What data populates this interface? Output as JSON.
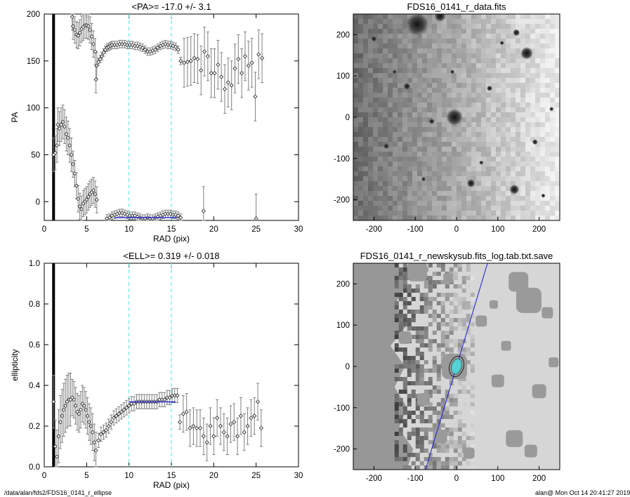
{
  "footer": {
    "path": "/data/alan/fds2/FDS16_0141_r_ellipse",
    "stamp": "alan@  Mon Oct 14 20:41:27 2019"
  },
  "colors": {
    "guide": "#4fe0e0",
    "fit": "#2b2bd0",
    "errbar": "#808080"
  },
  "chart_data": [
    {
      "type": "scatter",
      "title": "<PA>= -17.0 +/-   3.1",
      "xlabel": "RAD (pix)",
      "ylabel": "PA",
      "xlim": [
        0,
        30
      ],
      "ylim": [
        -20,
        200
      ],
      "xticks": [
        "0",
        "5",
        "10",
        "15",
        "20",
        "25",
        "30"
      ],
      "yticks": [
        "0",
        "50",
        "100",
        "150",
        "200"
      ],
      "guide_lines_x": [
        10,
        15
      ],
      "fit_segment": {
        "x": [
          8.3,
          15.7
        ],
        "y": -17
      },
      "series": [
        {
          "points": [
            [
              3.3,
              197
            ],
            [
              3.4,
              187
            ],
            [
              3.6,
              183
            ],
            [
              3.8,
              178
            ],
            [
              4.0,
              177
            ],
            [
              4.2,
              180
            ],
            [
              4.4,
              184
            ],
            [
              4.6,
              186
            ],
            [
              4.8,
              188
            ],
            [
              5.0,
              188
            ],
            [
              5.2,
              187
            ],
            [
              5.4,
              183
            ],
            [
              5.6,
              176
            ],
            [
              5.8,
              168
            ],
            [
              6.0,
              160
            ],
            [
              6.1,
              130
            ],
            [
              6.2,
              145
            ],
            [
              6.4,
              149
            ],
            [
              6.6,
              152
            ],
            [
              6.8,
              155
            ],
            [
              7.0,
              159
            ],
            [
              7.2,
              162
            ],
            [
              7.4,
              164
            ],
            [
              7.6,
              165
            ],
            [
              7.8,
              166
            ],
            [
              8.0,
              167
            ],
            [
              8.3,
              167
            ],
            [
              8.6,
              167
            ],
            [
              8.9,
              168
            ],
            [
              9.2,
              168
            ],
            [
              9.5,
              168
            ],
            [
              9.8,
              167
            ],
            [
              10.1,
              167
            ],
            [
              10.4,
              167
            ],
            [
              10.7,
              166
            ],
            [
              11.0,
              166
            ],
            [
              11.3,
              165
            ],
            [
              11.6,
              164
            ],
            [
              11.9,
              162
            ],
            [
              12.2,
              160
            ],
            [
              12.5,
              160
            ],
            [
              12.8,
              161
            ],
            [
              13.1,
              162
            ],
            [
              13.4,
              164
            ],
            [
              13.7,
              166
            ],
            [
              14.0,
              167
            ],
            [
              14.3,
              168
            ],
            [
              14.6,
              167
            ],
            [
              14.9,
              167
            ],
            [
              15.2,
              166
            ],
            [
              15.5,
              165
            ],
            [
              15.8,
              162
            ],
            [
              16.1,
              150
            ],
            [
              16.5,
              148
            ],
            [
              16.9,
              149
            ],
            [
              17.3,
              150
            ],
            [
              17.7,
              153
            ],
            [
              18.1,
              152
            ],
            [
              18.5,
              140
            ],
            [
              18.9,
              160
            ],
            [
              19.3,
              155
            ],
            [
              19.7,
              137
            ],
            [
              20.1,
              137
            ],
            [
              20.5,
              146
            ],
            [
              20.9,
              133
            ],
            [
              21.3,
              120
            ],
            [
              21.7,
              127
            ],
            [
              22.1,
              124
            ],
            [
              22.5,
              142
            ],
            [
              22.9,
              152
            ],
            [
              23.3,
              137
            ],
            [
              23.7,
              155
            ],
            [
              24.1,
              145
            ],
            [
              24.5,
              148
            ],
            [
              24.9,
              112
            ],
            [
              25.3,
              157
            ],
            [
              25.7,
              153
            ],
            [
              1.1,
              50
            ],
            [
              1.3,
              52
            ],
            [
              1.5,
              60
            ],
            [
              1.6,
              82
            ],
            [
              1.8,
              78
            ],
            [
              2.0,
              82
            ],
            [
              2.2,
              85
            ],
            [
              2.4,
              80
            ],
            [
              2.6,
              72
            ],
            [
              2.8,
              68
            ],
            [
              3.0,
              60
            ],
            [
              3.2,
              50
            ],
            [
              3.4,
              40
            ],
            [
              3.6,
              30
            ],
            [
              3.8,
              17
            ],
            [
              4.0,
              3
            ],
            [
              4.2,
              -5
            ],
            [
              4.4,
              -8
            ],
            [
              4.6,
              -2
            ],
            [
              4.8,
              0
            ],
            [
              5.0,
              2
            ],
            [
              5.2,
              5
            ],
            [
              5.4,
              8
            ],
            [
              5.6,
              10
            ],
            [
              5.8,
              12
            ],
            [
              6.0,
              8
            ],
            [
              6.2,
              2
            ],
            [
              7.4,
              -18
            ],
            [
              7.7,
              -17
            ],
            [
              8.0,
              -15
            ],
            [
              8.3,
              -14
            ],
            [
              8.6,
              -13
            ],
            [
              8.9,
              -12
            ],
            [
              9.2,
              -12
            ],
            [
              9.5,
              -13
            ],
            [
              9.8,
              -14
            ],
            [
              10.1,
              -15
            ],
            [
              10.4,
              -15
            ],
            [
              10.7,
              -15
            ],
            [
              11.0,
              -16
            ],
            [
              11.3,
              -17
            ],
            [
              11.6,
              -18
            ],
            [
              11.9,
              -18
            ],
            [
              12.2,
              -17
            ],
            [
              12.5,
              -18
            ],
            [
              12.8,
              -18
            ],
            [
              13.1,
              -17
            ],
            [
              13.4,
              -16
            ],
            [
              13.7,
              -15
            ],
            [
              14.0,
              -14
            ],
            [
              14.3,
              -13
            ],
            [
              14.6,
              -13
            ],
            [
              14.9,
              -13
            ],
            [
              15.2,
              -14
            ],
            [
              15.5,
              -14
            ],
            [
              15.8,
              -15
            ],
            [
              16.1,
              -17
            ],
            [
              18.8,
              -10
            ],
            [
              25.0,
              -18
            ]
          ]
        }
      ]
    },
    {
      "type": "image",
      "title": "FDS16_0141_r_data.fits",
      "xlim": [
        -250,
        250
      ],
      "ylim": [
        -250,
        250
      ],
      "xticks": [
        "-200",
        "-100",
        "0",
        "100",
        "200"
      ],
      "yticks": [
        "-200",
        "-100",
        "0",
        "100",
        "200"
      ]
    },
    {
      "type": "scatter",
      "title": "<ELL>= 0.319 +/-  0.018",
      "xlabel": "RAD (pix)",
      "ylabel": "ellipticity",
      "xlim": [
        0,
        30
      ],
      "ylim": [
        0,
        1
      ],
      "xticks": [
        "0",
        "5",
        "10",
        "15",
        "20",
        "25",
        "30"
      ],
      "yticks": [
        "0.0",
        "0.2",
        "0.4",
        "0.6",
        "0.8",
        "1.0"
      ],
      "guide_lines_x": [
        10,
        15
      ],
      "fit_segment": {
        "x": [
          10,
          15.5
        ],
        "y": 0.319
      },
      "series": [
        {
          "points": [
            [
              1.1,
              0.32
            ],
            [
              1.3,
              0.1
            ],
            [
              1.5,
              0.05
            ],
            [
              1.7,
              0.15
            ],
            [
              1.9,
              0.22
            ],
            [
              2.1,
              0.25
            ],
            [
              2.3,
              0.28
            ],
            [
              2.5,
              0.3
            ],
            [
              2.7,
              0.32
            ],
            [
              2.9,
              0.33
            ],
            [
              3.1,
              0.33
            ],
            [
              3.3,
              0.34
            ],
            [
              3.5,
              0.33
            ],
            [
              3.7,
              0.3
            ],
            [
              3.9,
              0.27
            ],
            [
              4.1,
              0.26
            ],
            [
              4.3,
              0.28
            ],
            [
              4.5,
              0.31
            ],
            [
              4.7,
              0.3
            ],
            [
              4.9,
              0.28
            ],
            [
              5.1,
              0.25
            ],
            [
              5.3,
              0.22
            ],
            [
              5.5,
              0.2
            ],
            [
              5.7,
              0.17
            ],
            [
              5.9,
              0.12
            ],
            [
              6.1,
              0.08
            ],
            [
              6.4,
              0.13
            ],
            [
              6.7,
              0.16
            ],
            [
              7.0,
              0.17
            ],
            [
              7.3,
              0.18
            ],
            [
              7.6,
              0.2
            ],
            [
              7.9,
              0.22
            ],
            [
              8.2,
              0.24
            ],
            [
              8.5,
              0.25
            ],
            [
              8.8,
              0.26
            ],
            [
              9.1,
              0.27
            ],
            [
              9.4,
              0.28
            ],
            [
              9.7,
              0.29
            ],
            [
              10.0,
              0.3
            ],
            [
              10.3,
              0.31
            ],
            [
              10.6,
              0.31
            ],
            [
              10.9,
              0.32
            ],
            [
              11.2,
              0.32
            ],
            [
              11.5,
              0.32
            ],
            [
              11.8,
              0.32
            ],
            [
              12.1,
              0.32
            ],
            [
              12.4,
              0.32
            ],
            [
              12.7,
              0.32
            ],
            [
              13.0,
              0.32
            ],
            [
              13.3,
              0.32
            ],
            [
              13.6,
              0.33
            ],
            [
              13.9,
              0.33
            ],
            [
              14.2,
              0.33
            ],
            [
              14.5,
              0.34
            ],
            [
              14.8,
              0.34
            ],
            [
              15.1,
              0.35
            ],
            [
              15.4,
              0.35
            ],
            [
              15.7,
              0.35
            ],
            [
              16.0,
              0.22
            ],
            [
              16.4,
              0.26
            ],
            [
              16.8,
              0.27
            ],
            [
              17.2,
              0.19
            ],
            [
              17.6,
              0.2
            ],
            [
              18.0,
              0.19
            ],
            [
              18.4,
              0.19
            ],
            [
              18.8,
              0.15
            ],
            [
              19.2,
              0.12
            ],
            [
              19.6,
              0.2
            ],
            [
              20.0,
              0.15
            ],
            [
              20.4,
              0.24
            ],
            [
              20.8,
              0.2
            ],
            [
              21.2,
              0.17
            ],
            [
              21.6,
              0.15
            ],
            [
              22.0,
              0.21
            ],
            [
              22.4,
              0.22
            ],
            [
              22.8,
              0.15
            ],
            [
              23.2,
              0.25
            ],
            [
              23.6,
              0.17
            ],
            [
              24.0,
              0.2
            ],
            [
              24.4,
              0.24
            ],
            [
              24.8,
              0.25
            ],
            [
              25.2,
              0.32
            ],
            [
              25.6,
              0.19
            ]
          ]
        }
      ]
    },
    {
      "type": "image",
      "title": "FDS16_0141_r_newskysub.fits_log.tab.txt.save",
      "xlim": [
        -250,
        250
      ],
      "ylim": [
        -250,
        250
      ],
      "xticks": [
        "-200",
        "-100",
        "0",
        "100",
        "200"
      ],
      "yticks": [
        "-200",
        "-100",
        "0",
        "100",
        "200"
      ]
    }
  ]
}
